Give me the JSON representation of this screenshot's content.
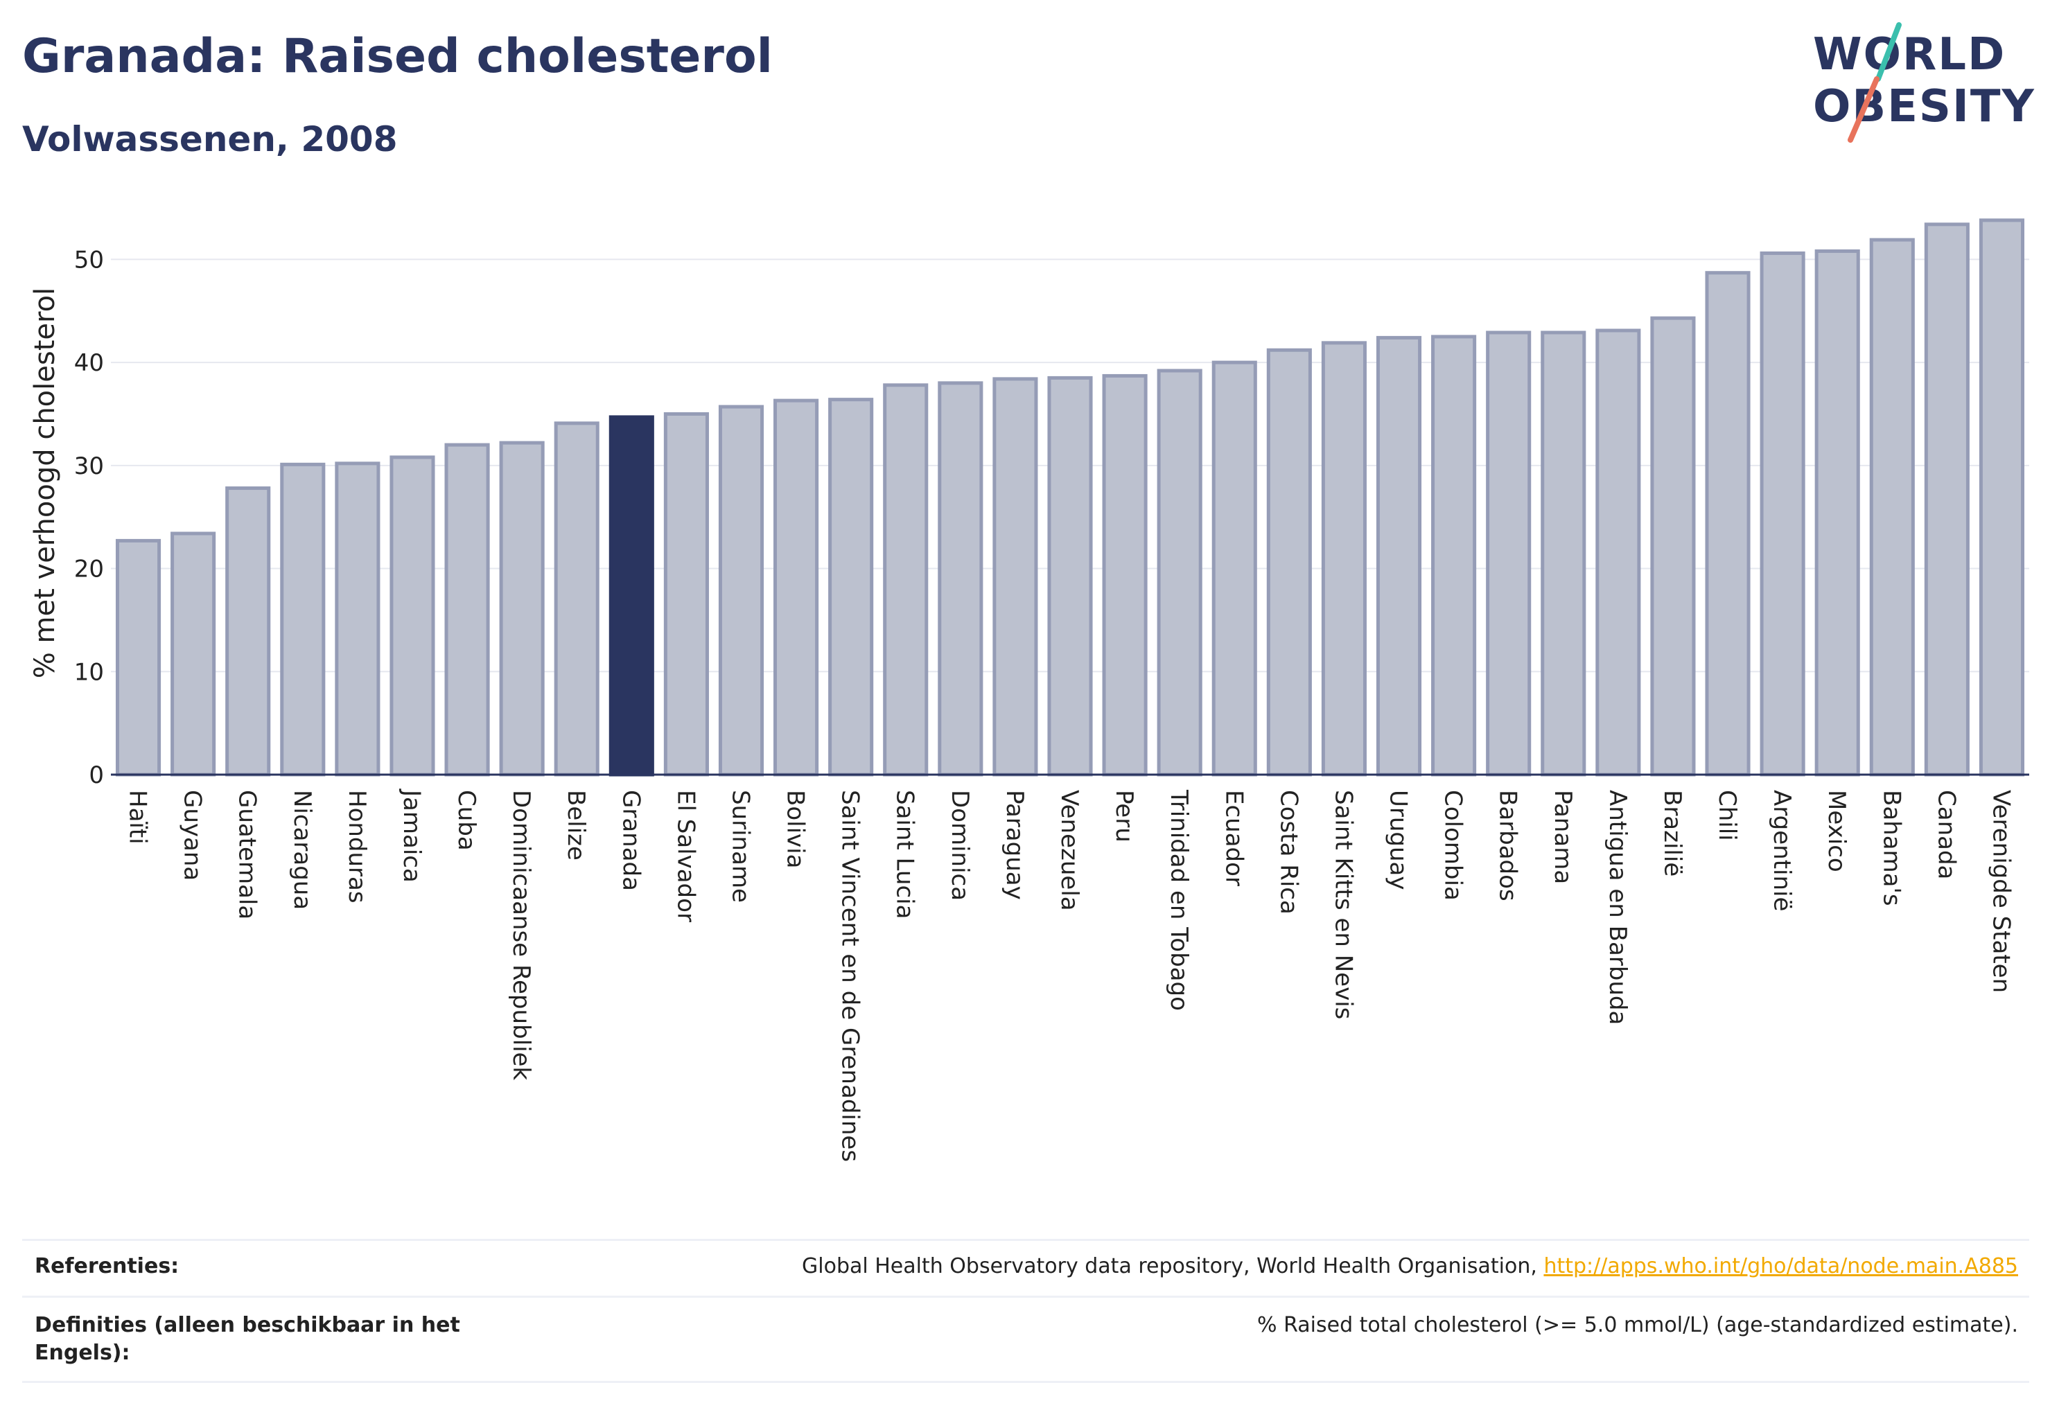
{
  "header": {
    "title": "Granada: Raised cholesterol",
    "subtitle": "Volwassenen, 2008"
  },
  "logo": {
    "line1": "WORLD",
    "line2": "OBESITY",
    "accent_colors": [
      "#3bbfad",
      "#e8735c"
    ]
  },
  "colors": {
    "bar": "#bcc1cf",
    "bar_stroke": "#959cb6",
    "highlight": "#2a3560",
    "grid": "#e6e8ef"
  },
  "chart_data": {
    "type": "bar",
    "title": "Granada: Raised cholesterol",
    "subtitle": "Volwassenen, 2008",
    "xlabel": "",
    "ylabel": "% met verhoogd cholesterol",
    "ylim": [
      0,
      55
    ],
    "yticks": [
      0,
      10,
      20,
      30,
      40,
      50
    ],
    "grid": true,
    "highlight": "Granada",
    "categories": [
      "Haïti",
      "Guyana",
      "Guatemala",
      "Nicaragua",
      "Honduras",
      "Jamaica",
      "Cuba",
      "Dominicaanse Republiek",
      "Belize",
      "Granada",
      "El Salvador",
      "Suriname",
      "Bolivia",
      "Saint Vincent en de Grenadines",
      "Saint Lucia",
      "Dominica",
      "Paraguay",
      "Venezuela",
      "Peru",
      "Trinidad en Tobago",
      "Ecuador",
      "Costa Rica",
      "Saint Kitts en Nevis",
      "Uruguay",
      "Colombia",
      "Barbados",
      "Panama",
      "Antigua en Barbuda",
      "Brazilië",
      "Chili",
      "Argentinië",
      "Mexico",
      "Bahama's",
      "Canada",
      "Verenigde Staten"
    ],
    "values": [
      22.7,
      23.4,
      27.8,
      30.1,
      30.2,
      30.8,
      32.0,
      32.2,
      34.1,
      34.7,
      35.0,
      35.7,
      36.3,
      36.4,
      37.8,
      38.0,
      38.4,
      38.5,
      38.7,
      39.2,
      40.0,
      41.2,
      41.9,
      42.4,
      42.5,
      42.9,
      42.9,
      43.1,
      44.3,
      48.7,
      50.6,
      50.8,
      51.9,
      53.4,
      53.8
    ]
  },
  "footer": {
    "references_label": "Referenties:",
    "references_text": "Global Health Observatory data repository, World Health Organisation, ",
    "references_link": "http://apps.who.int/gho/data/node.main.A885",
    "definitions_label": "Definities (alleen beschikbaar in het Engels):",
    "definitions_text": "% Raised total cholesterol (>= 5.0 mmol/L) (age-standardized estimate)."
  }
}
